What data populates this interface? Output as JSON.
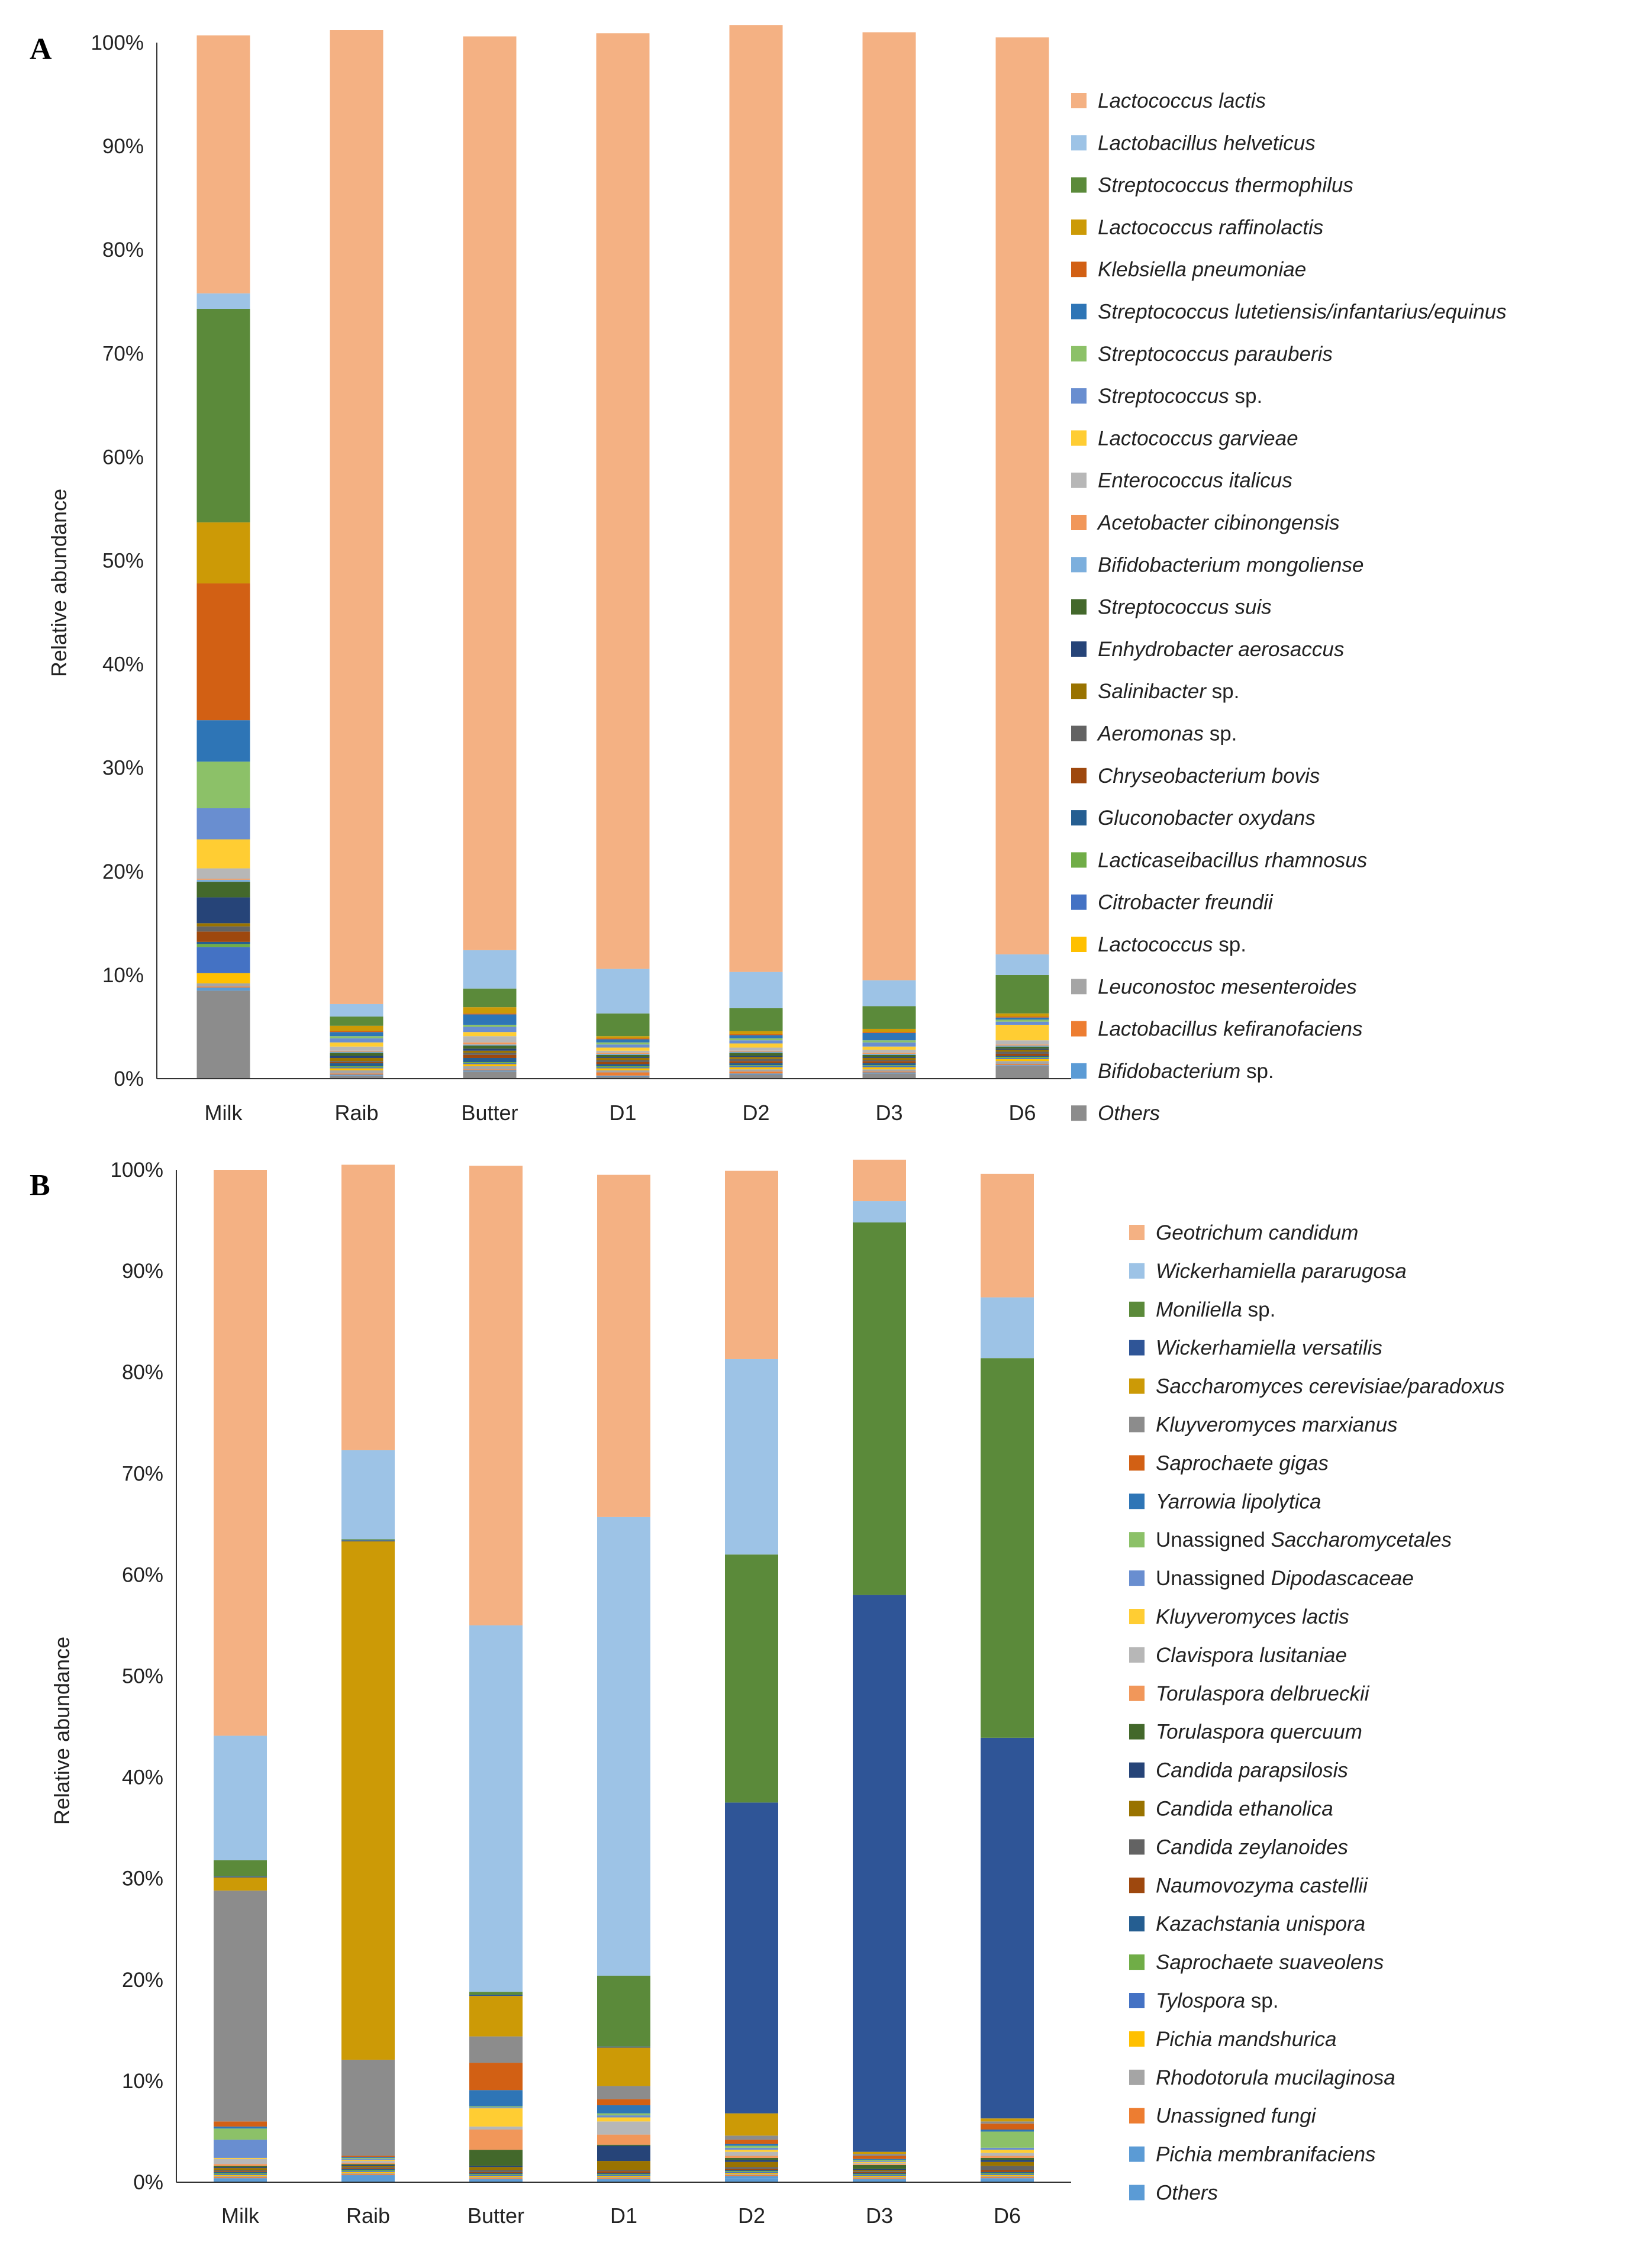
{
  "figure": {
    "panels": [
      {
        "letter": "A",
        "ylabel": "Relative abundance",
        "categories": [
          "Milk",
          "Raib",
          "Butter",
          "D1",
          "D2",
          "D3",
          "D6"
        ]
      },
      {
        "letter": "B",
        "ylabel": "Relative abundance",
        "categories": [
          "Milk",
          "Raib",
          "Butter",
          "D1",
          "D2",
          "D3",
          "D6"
        ]
      }
    ]
  },
  "chart_data": [
    {
      "type": "bar",
      "stacked": true,
      "panel": "A",
      "title": "",
      "xlabel": "",
      "ylabel": "Relative abundance",
      "ylim": [
        0,
        100
      ],
      "yticks": [
        "0%",
        "10%",
        "20%",
        "30%",
        "40%",
        "50%",
        "60%",
        "70%",
        "80%",
        "90%",
        "100%"
      ],
      "categories": [
        "Milk",
        "Raib",
        "Butter",
        "D1",
        "D2",
        "D3",
        "D6"
      ],
      "legend_position": "right",
      "series": [
        {
          "name": "Others",
          "genus": "",
          "rest": "Others",
          "italic": true,
          "color": "#8c8c8c",
          "values": [
            8.5,
            0.3,
            0.7,
            0.2,
            0.4,
            0.5,
            1.2
          ]
        },
        {
          "name": "Bifidobacterium sp.",
          "genus": "Bifidobacterium",
          "rest": " sp.",
          "italic": true,
          "color": "#5b9bd5",
          "values": [
            0.3,
            0.1,
            0.1,
            0.1,
            0.1,
            0.1,
            0.1
          ]
        },
        {
          "name": "Lactobacillus kefiranofaciens",
          "genus": "",
          "rest": "Lactobacillus kefiranofaciens",
          "italic": true,
          "color": "#ed7d31",
          "values": [
            0.1,
            0.1,
            0.1,
            0.3,
            0.2,
            0.1,
            0.1
          ]
        },
        {
          "name": "Leuconostoc mesenteroides",
          "genus": "",
          "rest": "Leuconostoc mesenteroides",
          "italic": true,
          "color": "#a5a5a5",
          "values": [
            0.3,
            0.3,
            0.3,
            0.2,
            0.2,
            0.2,
            0.3
          ]
        },
        {
          "name": "Lactococcus sp.",
          "genus": "Lactococcus",
          "rest": " sp.",
          "italic": true,
          "color": "#ffc000",
          "values": [
            1.0,
            0.2,
            0.2,
            0.2,
            0.2,
            0.2,
            0.2
          ]
        },
        {
          "name": "Citrobacter freundii",
          "genus": "",
          "rest": "Citrobacter freundii",
          "italic": true,
          "color": "#4472c4",
          "values": [
            2.5,
            0.1,
            0.1,
            0.1,
            0.1,
            0.1,
            0.1
          ]
        },
        {
          "name": "Lacticaseibacillus rhamnosus",
          "genus": "",
          "rest": "Lacticaseibacillus rhamnosus",
          "italic": true,
          "color": "#70ad47",
          "values": [
            0.3,
            0.1,
            0.1,
            0.1,
            0.1,
            0.1,
            0.1
          ]
        },
        {
          "name": "Gluconobacter oxydans",
          "genus": "",
          "rest": "Gluconobacter oxydans",
          "italic": true,
          "color": "#255e91",
          "values": [
            0.2,
            0.3,
            0.4,
            0.2,
            0.2,
            0.2,
            0.1
          ]
        },
        {
          "name": "Chryseobacterium bovis",
          "genus": "",
          "rest": "Chryseobacterium bovis",
          "italic": true,
          "color": "#9e480e",
          "values": [
            1.0,
            0.1,
            0.3,
            0.2,
            0.2,
            0.2,
            0.2
          ]
        },
        {
          "name": "Aeromonas sp.",
          "genus": "Aeromonas",
          "rest": " sp.",
          "italic": true,
          "color": "#636363",
          "values": [
            0.5,
            0.1,
            0.2,
            0.2,
            0.2,
            0.1,
            0.2
          ]
        },
        {
          "name": "Salinibacter sp.",
          "genus": "Salinibacter",
          "rest": " sp.",
          "italic": true,
          "color": "#997300",
          "values": [
            0.3,
            0.3,
            0.2,
            0.2,
            0.2,
            0.2,
            0.2
          ]
        },
        {
          "name": "Enhydrobacter aerosaccus",
          "genus": "",
          "rest": "Enhydrobacter aerosaccus",
          "italic": true,
          "color": "#264478",
          "values": [
            2.5,
            0.2,
            0.2,
            0.1,
            0.1,
            0.1,
            0.1
          ]
        },
        {
          "name": "Streptococcus suis",
          "genus": "",
          "rest": "Streptococcus suis",
          "italic": true,
          "color": "#43682b",
          "values": [
            1.5,
            0.3,
            0.3,
            0.2,
            0.3,
            0.2,
            0.2
          ]
        },
        {
          "name": "Bifidobacterium mongoliense",
          "genus": "",
          "rest": "Bifidobacterium mongoliense",
          "italic": true,
          "color": "#7cafdd",
          "values": [
            0.2,
            0.1,
            0.1,
            0.1,
            0.1,
            0.1,
            0.1
          ]
        },
        {
          "name": "Acetobacter cibinongensis",
          "genus": "",
          "rest": "Acetobacter cibinongensis",
          "italic": true,
          "color": "#f1975a",
          "values": [
            0.1,
            0.1,
            0.2,
            0.1,
            0.1,
            0.1,
            0.1
          ]
        },
        {
          "name": "Enterococcus italicus",
          "genus": "",
          "rest": "Enterococcus italicus",
          "italic": true,
          "color": "#b7b7b7",
          "values": [
            1.0,
            0.4,
            0.6,
            0.2,
            0.3,
            0.3,
            0.4
          ]
        },
        {
          "name": "Lactococcus garvieae",
          "genus": "",
          "rest": "Lactococcus garvieae",
          "italic": true,
          "color": "#ffcd33",
          "values": [
            2.8,
            0.4,
            0.4,
            0.3,
            0.4,
            0.3,
            1.5
          ]
        },
        {
          "name": "Streptococcus sp.",
          "genus": "Streptococcus",
          "rest": " sp.",
          "italic": true,
          "color": "#698ed0",
          "values": [
            3.0,
            0.4,
            0.5,
            0.3,
            0.3,
            0.4,
            0.3
          ]
        },
        {
          "name": "Streptococcus parauberis",
          "genus": "",
          "rest": "Streptococcus parauberis",
          "italic": true,
          "color": "#8cc168",
          "values": [
            4.5,
            0.2,
            0.2,
            0.2,
            0.2,
            0.2,
            0.2
          ]
        },
        {
          "name": "Streptococcus lutetiensis/infantarius/equinus",
          "genus": "",
          "rest": "Streptococcus lutetiensis/infantarius/equinus",
          "italic": true,
          "color": "#2e75b6",
          "values": [
            4.0,
            0.4,
            1.0,
            0.3,
            0.3,
            0.7,
            0.2
          ]
        },
        {
          "name": "Klebsiella pneumoniae",
          "genus": "",
          "rest": "Klebsiella pneumoniae",
          "italic": true,
          "color": "#d26014",
          "values": [
            13.2,
            0.1,
            0.1,
            0.1,
            0.1,
            0.1,
            0.1
          ]
        },
        {
          "name": "Lactococcus raffinolactis",
          "genus": "",
          "rest": "Lactococcus raffinolactis",
          "italic": true,
          "color": "#cc9a06",
          "values": [
            5.9,
            0.5,
            0.6,
            0.2,
            0.3,
            0.3,
            0.3
          ]
        },
        {
          "name": "Streptococcus thermophilus",
          "genus": "",
          "rest": "Streptococcus thermophilus",
          "italic": true,
          "color": "#5b8a3a",
          "values": [
            20.6,
            0.9,
            1.8,
            2.2,
            2.2,
            2.2,
            3.7
          ]
        },
        {
          "name": "Lactobacillus helveticus",
          "genus": "",
          "rest": "Lactobacillus helveticus",
          "italic": true,
          "color": "#9dc3e6",
          "values": [
            1.5,
            1.2,
            3.7,
            4.3,
            3.5,
            2.5,
            2.0
          ]
        },
        {
          "name": "Lactococcus lactis",
          "genus": "",
          "rest": "Lactococcus lactis",
          "italic": true,
          "color": "#f4b183",
          "values": [
            24.9,
            94.0,
            88.2,
            90.3,
            91.4,
            91.5,
            88.5
          ]
        }
      ]
    },
    {
      "type": "bar",
      "stacked": true,
      "panel": "B",
      "title": "",
      "xlabel": "",
      "ylabel": "Relative abundance",
      "ylim": [
        0,
        100
      ],
      "yticks": [
        "0%",
        "10%",
        "20%",
        "30%",
        "40%",
        "50%",
        "60%",
        "70%",
        "80%",
        "90%",
        "100%"
      ],
      "categories": [
        "Milk",
        "Raib",
        "Butter",
        "D1",
        "D2",
        "D3",
        "D6"
      ],
      "legend_position": "right",
      "series": [
        {
          "name": "Others",
          "genus": "",
          "rest": "Others",
          "italic": true,
          "color": "#5b9bd5",
          "values": [
            0.2,
            0.2,
            0.2,
            0.2,
            0.4,
            0.2,
            0.3
          ]
        },
        {
          "name": "Pichia membranifaciens",
          "genus": "",
          "rest": "Pichia membranifaciens",
          "italic": true,
          "color": "#5b9bd5",
          "values": [
            0.2,
            0.5,
            0.1,
            0.1,
            0.2,
            0.1,
            0.1
          ]
        },
        {
          "name": "Unassigned fungi",
          "genus": "",
          "rest": "Unassigned fungi",
          "italic": true,
          "color": "#ed7d31",
          "values": [
            0.1,
            0.1,
            0.1,
            0.1,
            0.1,
            0.1,
            0.1
          ]
        },
        {
          "name": "Rhodotorula mucilaginosa",
          "genus": "",
          "rest": "Rhodotorula mucilaginosa",
          "italic": true,
          "color": "#a5a5a5",
          "values": [
            0.1,
            0.1,
            0.1,
            0.1,
            0.1,
            0.1,
            0.1
          ]
        },
        {
          "name": "Pichia mandshurica",
          "genus": "",
          "rest": "Pichia mandshurica",
          "italic": true,
          "color": "#ffc000",
          "values": [
            0.1,
            0.1,
            0.1,
            0.1,
            0.1,
            0.1,
            0.1
          ]
        },
        {
          "name": "Tylospora sp.",
          "genus": "Tylospora",
          "rest": " sp.",
          "italic": true,
          "color": "#4472c4",
          "values": [
            0.1,
            0.1,
            0.1,
            0.1,
            0.1,
            0.1,
            0.1
          ]
        },
        {
          "name": "Saprochaete suaveolens",
          "genus": "",
          "rest": "Saprochaete suaveolens",
          "italic": true,
          "color": "#70ad47",
          "values": [
            0.1,
            0.1,
            0.1,
            0.1,
            0.1,
            0.1,
            0.1
          ]
        },
        {
          "name": "Kazachstania unispora",
          "genus": "",
          "rest": "Kazachstania unispora",
          "italic": true,
          "color": "#255e91",
          "values": [
            0.1,
            0.1,
            0.1,
            0.1,
            0.1,
            0.1,
            0.1
          ]
        },
        {
          "name": "Naumovozyma castellii",
          "genus": "",
          "rest": "Naumovozyma castellii",
          "italic": true,
          "color": "#9e480e",
          "values": [
            0.1,
            0.1,
            0.1,
            0.2,
            0.1,
            0.1,
            0.2
          ]
        },
        {
          "name": "Candida zeylanoides",
          "genus": "",
          "rest": "Candida zeylanoides",
          "italic": true,
          "color": "#636363",
          "values": [
            0.1,
            0.1,
            0.2,
            0.1,
            0.2,
            0.1,
            0.4
          ]
        },
        {
          "name": "Candida ethanolica",
          "genus": "",
          "rest": "Candida ethanolica",
          "italic": true,
          "color": "#997300",
          "values": [
            0.2,
            0.1,
            0.3,
            0.9,
            0.5,
            0.1,
            0.4
          ]
        },
        {
          "name": "Candida parapsilosis",
          "genus": "",
          "rest": "Candida parapsilosis",
          "italic": true,
          "color": "#264478",
          "values": [
            0.1,
            0.1,
            0.1,
            1.5,
            0.2,
            0.1,
            0.2
          ]
        },
        {
          "name": "Torulaspora quercuum",
          "genus": "",
          "rest": "Torulaspora quercuum",
          "italic": true,
          "color": "#43682b",
          "values": [
            0.1,
            0.1,
            1.6,
            0.1,
            0.2,
            0.4,
            0.2
          ]
        },
        {
          "name": "Torulaspora delbrueckii",
          "genus": "",
          "rest": "Torulaspora delbrueckii",
          "italic": true,
          "color": "#f1975a",
          "values": [
            0.2,
            0.1,
            2.0,
            1.0,
            0.2,
            0.1,
            0.2
          ]
        },
        {
          "name": "Clavispora lusitaniae",
          "genus": "",
          "rest": "Clavispora lusitaniae",
          "italic": true,
          "color": "#b7b7b7",
          "values": [
            0.5,
            0.2,
            0.3,
            1.3,
            0.4,
            0.1,
            0.3
          ]
        },
        {
          "name": "Kluyveromyces lactis",
          "genus": "",
          "rest": "Kluyveromyces lactis",
          "italic": true,
          "color": "#ffcd33",
          "values": [
            0.1,
            0.1,
            1.8,
            0.4,
            0.2,
            0.1,
            0.3
          ]
        },
        {
          "name": "Unassigned Dipodascaceae",
          "genus": "Dipodascaceae",
          "rest": "Unassigned ",
          "italic": false,
          "color": "#698ed0",
          "values": [
            1.8,
            0.1,
            0.1,
            0.2,
            0.2,
            0.1,
            0.2
          ]
        },
        {
          "name": "Unassigned Saccharomycetales",
          "genus": "Saccharomycetales",
          "rest": "Unassigned ",
          "italic": false,
          "color": "#8cc168",
          "values": [
            1.1,
            0.1,
            0.1,
            0.2,
            0.2,
            0.1,
            1.6
          ]
        },
        {
          "name": "Yarrowia lipolytica",
          "genus": "",
          "rest": "Yarrowia lipolytica",
          "italic": true,
          "color": "#2e75b6",
          "values": [
            0.2,
            0.1,
            1.6,
            0.8,
            0.2,
            0.1,
            0.2
          ]
        },
        {
          "name": "Saprochaete gigas",
          "genus": "",
          "rest": "Saprochaete gigas",
          "italic": true,
          "color": "#d26014",
          "values": [
            0.5,
            0.1,
            2.7,
            0.6,
            0.4,
            0.3,
            0.6
          ]
        },
        {
          "name": "Kluyveromyces marxianus",
          "genus": "",
          "rest": "Kluyveromyces marxianus",
          "italic": true,
          "color": "#8c8c8c",
          "values": [
            22.8,
            9.5,
            2.6,
            1.3,
            0.4,
            0.2,
            0.2
          ]
        },
        {
          "name": "Saccharomyces cerevisiae/paradoxus",
          "genus": "",
          "rest": "Saccharomyces cerevisiae/paradoxus",
          "italic": true,
          "color": "#cc9a06",
          "values": [
            1.3,
            51.2,
            4.0,
            3.8,
            2.2,
            0.2,
            0.3
          ]
        },
        {
          "name": "Wickerhamiella versatilis",
          "genus": "",
          "rest": "Wickerhamiella versatilis",
          "italic": true,
          "color": "#2f5597",
          "values": [
            0.1,
            0.1,
            0.1,
            0.1,
            30.7,
            55.0,
            37.6
          ]
        },
        {
          "name": "Moniliella sp.",
          "genus": "Moniliella",
          "rest": " sp.",
          "italic": true,
          "color": "#5b8a3a",
          "values": [
            1.6,
            0.1,
            0.3,
            7.0,
            24.5,
            36.8,
            37.5
          ]
        },
        {
          "name": "Wickerhamiella pararugosa",
          "genus": "",
          "rest": "Wickerhamiella pararugosa",
          "italic": true,
          "color": "#9dc3e6",
          "values": [
            12.3,
            8.8,
            36.2,
            45.3,
            19.3,
            2.1,
            6.0
          ]
        },
        {
          "name": "Geotrichum candidum",
          "genus": "",
          "rest": "Geotrichum candidum",
          "italic": true,
          "color": "#f4b183",
          "values": [
            55.9,
            28.2,
            45.4,
            33.8,
            18.6,
            4.1,
            12.2
          ]
        }
      ]
    }
  ]
}
